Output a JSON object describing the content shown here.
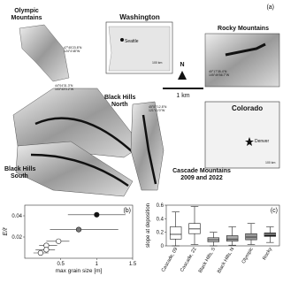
{
  "panel_a": {
    "label": "(a)",
    "olympic": [
      "Olympic",
      "Mountains"
    ],
    "olympic_coords": [
      "47°45'23.8\"N",
      "124°4'48\"W"
    ],
    "washington": "Washington",
    "seattle": "Seattle",
    "wa_scale": "100 km",
    "rocky": "Rocky Mountains",
    "rocky_coords": [
      "40°17'35.4\"N",
      "105°49'56.7\"W"
    ],
    "north": "N",
    "scale": "1 km",
    "colorado": "Colorado",
    "denver": "Denver",
    "co_scale": "100 km",
    "bh_north": [
      "Black Hills",
      "North"
    ],
    "bh_coords": [
      "44°04'31.3\"N",
      "103°43'0.2\"W"
    ],
    "bh_south": [
      "Black Hills",
      "South"
    ],
    "cascade": [
      "Cascade Mountains",
      "2009 and 2022"
    ],
    "cascade_coords": [
      "45°57'12.8\"N",
      "121°41'0\"W"
    ]
  },
  "chart_data": [
    {
      "type": "scatter",
      "label": "(b)",
      "xlabel": "max grain size [m]",
      "ylabel": "E/ℓ",
      "xlim": [
        0,
        1.5
      ],
      "ylim": [
        0,
        0.05
      ],
      "xticks": [
        0.5,
        1,
        1.5
      ],
      "yticks": [
        0.02,
        0.04
      ],
      "x": [
        1.0,
        0.75,
        0.47,
        0.3,
        0.3,
        0.22
      ],
      "y": [
        0.041,
        0.027,
        0.016,
        0.012,
        0.008,
        0.005
      ],
      "xmin": [
        0.6,
        0.35,
        0.3,
        0.2,
        0.15,
        0.12
      ],
      "xmax": [
        1.4,
        1.3,
        0.62,
        0.45,
        0.42,
        0.33
      ],
      "colors": [
        "#111111",
        "#777777",
        "#ffffff",
        "#ffffff",
        "#ffffff",
        "#ffffff"
      ]
    },
    {
      "type": "box",
      "label": "(c)",
      "ylabel": "slope at deposition",
      "categories": [
        "Cascade, 09",
        "Cascade, 22",
        "Black Hills, S",
        "Black Hills, N",
        "Olympic",
        "Rocky"
      ],
      "ylim": [
        0,
        0.6
      ],
      "yticks": [
        0,
        0.2,
        0.4,
        0.6
      ],
      "low": [
        0,
        0.02,
        0,
        0.01,
        0.02,
        0.05
      ],
      "q1": [
        0.1,
        0.18,
        0.06,
        0.07,
        0.09,
        0.14
      ],
      "median": [
        0.17,
        0.25,
        0.09,
        0.1,
        0.13,
        0.17
      ],
      "q3": [
        0.28,
        0.33,
        0.12,
        0.15,
        0.18,
        0.19
      ],
      "high": [
        0.5,
        0.58,
        0.2,
        0.28,
        0.33,
        0.28
      ],
      "colors": [
        "#ffffff",
        "#ffffff",
        "#bbbbbb",
        "#aaaaaa",
        "#999999",
        "#111111"
      ]
    }
  ]
}
